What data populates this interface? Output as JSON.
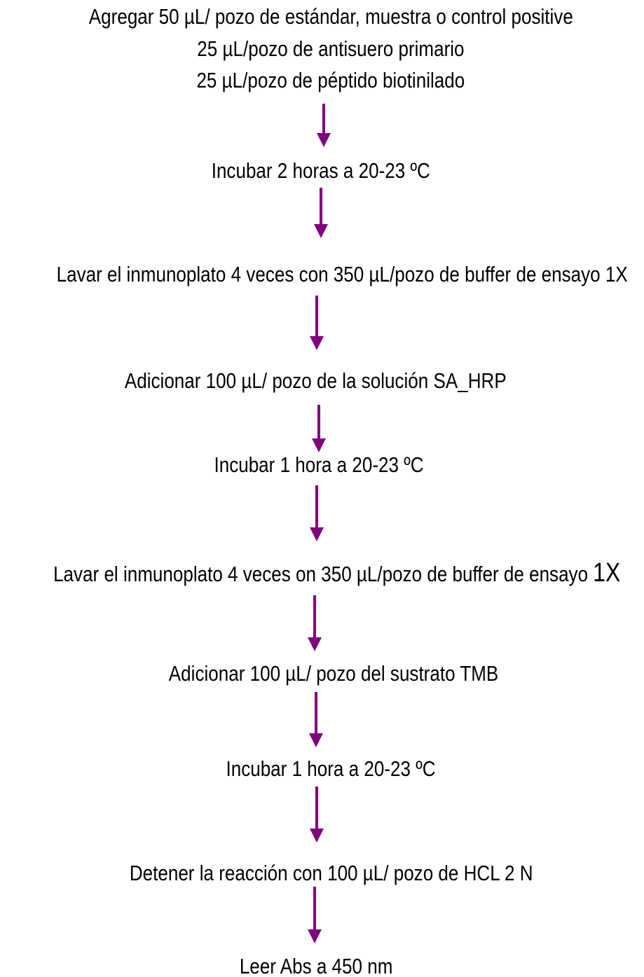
{
  "nodes": [
    {
      "lines": [
        "Agregar 50 µL/ pozo de estándar, muestra o control positive",
        "25 µL/pozo de antisuero primario",
        "25 µL/pozo de péptido biotinilado"
      ]
    },
    {
      "lines": [
        "Incubar 2 horas a 20-23 ºC"
      ]
    },
    {
      "lines": [
        "Lavar el inmunoplato 4 veces con 350 µL/pozo de buffer de ensayo 1X"
      ]
    },
    {
      "lines": [
        "Adicionar 100 µL/ pozo de la solución SA_HRP"
      ]
    },
    {
      "lines": [
        "Incubar 1 hora a 20-23 ºC"
      ]
    },
    {
      "lines": [
        "Lavar el inmunoplato 4 veces on 350 µL/pozo de buffer de ensayo"
      ],
      "suffix": "1X"
    },
    {
      "lines": [
        "Adicionar 100 µL/ pozo del sustrato TMB"
      ]
    },
    {
      "lines": [
        "Incubar 1 hora a 20-23 ºC"
      ]
    },
    {
      "lines": [
        "Detener la reacción con 100 µL/ pozo de HCL 2 N"
      ]
    },
    {
      "lines": [
        "Leer Abs a 450 nm"
      ]
    }
  ]
}
